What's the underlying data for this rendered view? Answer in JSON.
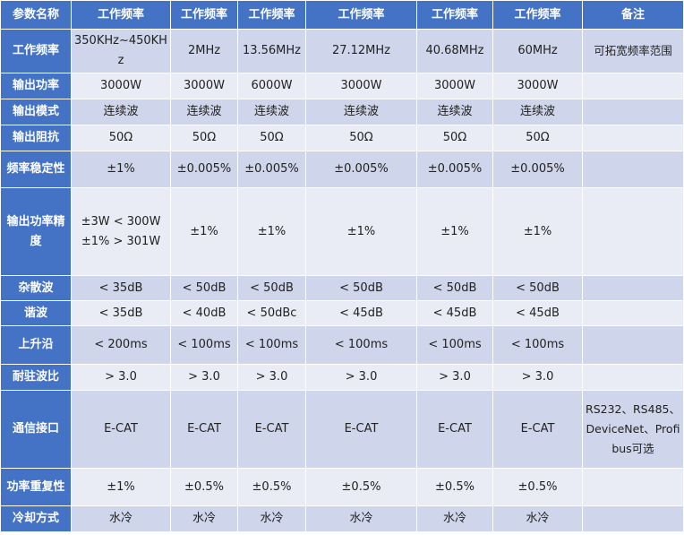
{
  "header": {
    "param": "参数名称",
    "cols": [
      "工作频率",
      "工作频率",
      "工作频率",
      "工作频率",
      "工作频率",
      "工作频率"
    ],
    "note": "备注"
  },
  "rows": [
    {
      "label": "工作频率",
      "values": [
        "350KHz~450KHz",
        "2MHz",
        "13.56MHz",
        "27.12MHz",
        "40.68MHz",
        "60MHz"
      ],
      "note": "可拓宽频率范围"
    },
    {
      "label": "输出功率",
      "values": [
        "3000W",
        "3000W",
        "6000W",
        "3000W",
        "3000W",
        "3000W"
      ],
      "note": ""
    },
    {
      "label": "输出模式",
      "values": [
        "连续波",
        "连续波",
        "连续波",
        "连续波",
        "连续波",
        "连续波"
      ],
      "note": ""
    },
    {
      "label": "输出阻抗",
      "values": [
        "50Ω",
        "50Ω",
        "50Ω",
        "50Ω",
        "50Ω",
        "50Ω"
      ],
      "note": ""
    },
    {
      "label": "频率稳定性",
      "values": [
        "±1%",
        "±0.005%",
        "±0.005%",
        "±0.005%",
        "±0.005%",
        "±0.005%"
      ],
      "note": ""
    },
    {
      "label": "输出功率精度",
      "values": [
        "±3W < 300W",
        "±1%",
        "±1%",
        "±1%",
        "±1%",
        "±1%"
      ],
      "value0_line2": "±1% > 301W",
      "note": ""
    },
    {
      "label": "杂散波",
      "values": [
        "< 35dB",
        "< 50dB",
        "< 50dB",
        "< 50dB",
        "< 50dB",
        "< 50dB"
      ],
      "note": ""
    },
    {
      "label": "谐波",
      "values": [
        "< 35dB",
        "< 40dB",
        "< 50dBc",
        "< 45dB",
        "< 45dB",
        "< 45dB"
      ],
      "note": ""
    },
    {
      "label": "上升沿",
      "values": [
        "< 200ms",
        "< 100ms",
        "< 100ms",
        "< 100ms",
        "< 100ms",
        "< 100ms"
      ],
      "note": ""
    },
    {
      "label": "耐驻波比",
      "values": [
        "> 3.0",
        "> 3.0",
        "> 3.0",
        "> 3.0",
        "> 3.0",
        "> 3.0"
      ],
      "note": ""
    },
    {
      "label": "通信接口",
      "values": [
        "E-CAT",
        "E-CAT",
        "E-CAT",
        "E-CAT",
        "E-CAT",
        "E-CAT"
      ],
      "note": "RS232、RS485、DeviceNet、Profibus可选"
    },
    {
      "label": "功率重复性",
      "values": [
        "±1%",
        "±0.5%",
        "±0.5%",
        "±0.5%",
        "±0.5%",
        "±0.5%"
      ],
      "note": ""
    },
    {
      "label": "冷却方式",
      "values": [
        "水冷",
        "水冷",
        "水冷",
        "水冷",
        "水冷",
        "水冷"
      ],
      "note": ""
    }
  ]
}
